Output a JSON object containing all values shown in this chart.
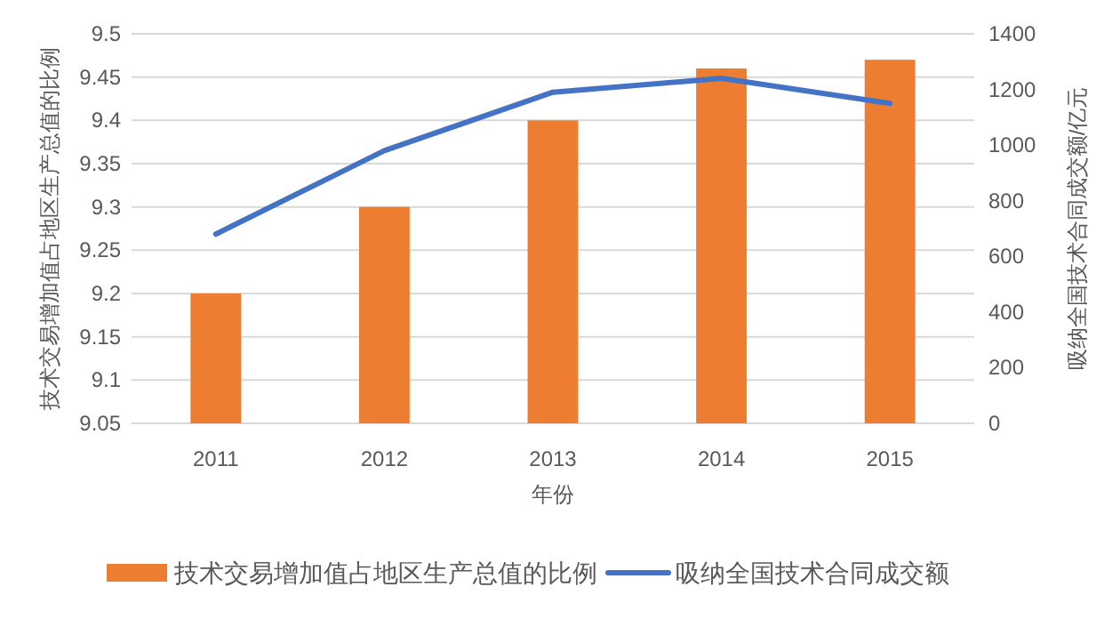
{
  "chart_data": {
    "type": "bar",
    "categories": [
      "2011",
      "2012",
      "2013",
      "2014",
      "2015"
    ],
    "xlabel": "年份",
    "ylabel": "技术交易增加值占地区生产总值的比例",
    "y2label": "吸纳全国技术合同成交额/亿元",
    "series": [
      {
        "name": "技术交易增加值占地区生产总值的比例",
        "color": "#ed7d31",
        "values": [
          9.2,
          9.3,
          9.4,
          9.46,
          9.47
        ]
      },
      {
        "name": "吸纳全国技术合同成交额",
        "type": "line",
        "axis": "y2",
        "color": "#4472c4",
        "values": [
          680,
          980,
          1190,
          1240,
          1150
        ]
      }
    ],
    "ylim": [
      9.05,
      9.5
    ],
    "yticks": [
      9.05,
      9.1,
      9.15,
      9.2,
      9.25,
      9.3,
      9.35,
      9.4,
      9.45,
      9.5
    ],
    "y2lim": [
      0,
      1400
    ],
    "y2ticks": [
      0,
      200,
      400,
      600,
      800,
      1000,
      1200,
      1400
    ],
    "grid": "y",
    "legend": "bottom",
    "marker": "none"
  }
}
